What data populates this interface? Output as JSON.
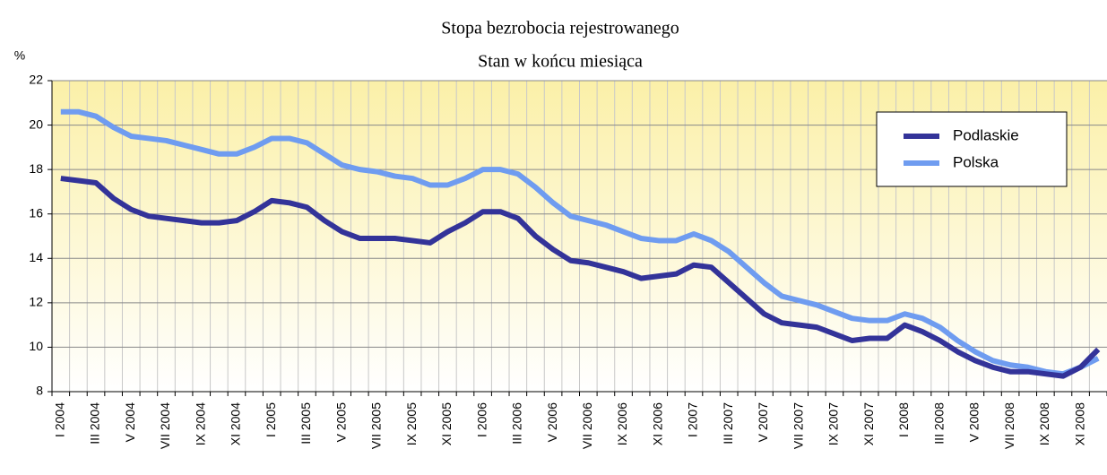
{
  "chart_data": {
    "type": "line",
    "title": "Stopa bezrobocia rejestrowanego",
    "subtitle": "Stan w końcu miesiąca",
    "y_label": "%",
    "categories": [
      "I 2004",
      null,
      "III 2004",
      null,
      "V 2004",
      null,
      "VII 2004",
      null,
      "IX 2004",
      null,
      "XI 2004",
      null,
      "I 2005",
      null,
      "III 2005",
      null,
      "V 2005",
      null,
      "VII 2005",
      null,
      "IX 2005",
      null,
      "XI 2005",
      null,
      "I 2006",
      null,
      "III 2006",
      null,
      "V 2006",
      null,
      "VII 2006",
      null,
      "IX 2006",
      null,
      "XI 2006",
      null,
      "I 2007",
      null,
      "III 2007",
      null,
      "V 2007",
      null,
      "VII 2007",
      null,
      "IX 2007",
      null,
      "XI 2007",
      null,
      "I 2008",
      null,
      "III 2008",
      null,
      "V 2008",
      null,
      "VII 2008",
      null,
      "IX 2008",
      null,
      "XI 2008",
      null
    ],
    "series": [
      {
        "name": "Podlaskie",
        "color": "#333399",
        "values": [
          17.6,
          17.5,
          17.4,
          16.7,
          16.2,
          15.9,
          15.8,
          15.7,
          15.6,
          15.6,
          15.7,
          16.1,
          16.6,
          16.5,
          16.3,
          15.7,
          15.2,
          14.9,
          14.9,
          14.9,
          14.8,
          14.7,
          15.2,
          15.6,
          16.1,
          16.1,
          15.8,
          15.0,
          14.4,
          13.9,
          13.8,
          13.6,
          13.4,
          13.1,
          13.2,
          13.3,
          13.7,
          13.6,
          12.9,
          12.2,
          11.5,
          11.1,
          11.0,
          10.9,
          10.6,
          10.3,
          10.4,
          10.4,
          11.0,
          10.7,
          10.3,
          9.8,
          9.4,
          9.1,
          8.9,
          8.9,
          8.8,
          8.7,
          9.1,
          9.9
        ]
      },
      {
        "name": "Polska",
        "color": "#6f9cf0",
        "values": [
          20.6,
          20.6,
          20.4,
          19.9,
          19.5,
          19.4,
          19.3,
          19.1,
          18.9,
          18.7,
          18.7,
          19.0,
          19.4,
          19.4,
          19.2,
          18.7,
          18.2,
          18.0,
          17.9,
          17.7,
          17.6,
          17.3,
          17.3,
          17.6,
          18.0,
          18.0,
          17.8,
          17.2,
          16.5,
          15.9,
          15.7,
          15.5,
          15.2,
          14.9,
          14.8,
          14.8,
          15.1,
          14.8,
          14.3,
          13.6,
          12.9,
          12.3,
          12.1,
          11.9,
          11.6,
          11.3,
          11.2,
          11.2,
          11.5,
          11.3,
          10.9,
          10.3,
          9.8,
          9.4,
          9.2,
          9.1,
          8.9,
          8.8,
          9.1,
          9.5
        ]
      }
    ],
    "ylim": [
      8,
      22
    ],
    "yticks": [
      8,
      10,
      12,
      14,
      16,
      18,
      20,
      22
    ],
    "grid": true,
    "legend": "upper right"
  }
}
